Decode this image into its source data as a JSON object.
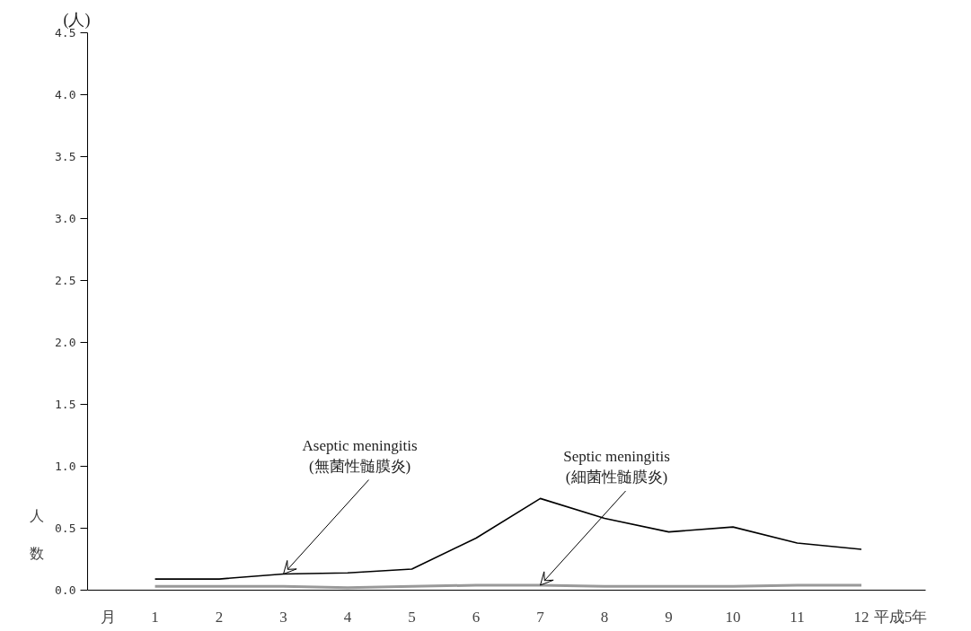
{
  "chart_data": {
    "type": "line",
    "xlabel": "平成5年",
    "ylabel": "人数",
    "x": [
      1,
      2,
      3,
      4,
      5,
      6,
      7,
      8,
      9,
      10,
      11,
      12
    ],
    "xlim": [
      -0.05,
      13
    ],
    "xticks": [
      1,
      2,
      3,
      4,
      5,
      6,
      7,
      8,
      9,
      10,
      11,
      12
    ],
    "ylim": [
      0,
      4.5
    ],
    "yticks": [
      {
        "value": 0,
        "label": "0.0"
      },
      {
        "value": 0.5,
        "label": "0.5"
      },
      {
        "value": 1,
        "label": "1.0"
      },
      {
        "value": 1.5,
        "label": "1.5"
      },
      {
        "value": 2,
        "label": "2.0"
      },
      {
        "value": 2.5,
        "label": "2.5"
      },
      {
        "value": 3,
        "label": "3.0"
      },
      {
        "value": 3.5,
        "label": "3.5"
      },
      {
        "value": 4,
        "label": "4.0"
      },
      {
        "value": 4.5,
        "label": "4.5"
      }
    ],
    "series": [
      {
        "color": "#000000",
        "values": [
          0.09,
          0.09,
          0.13,
          0.14,
          0.17,
          0.42,
          0.74,
          0.58,
          0.47,
          0.51,
          0.38,
          0.33
        ]
      },
      {
        "color": "#999999",
        "values": [
          0.03,
          0.03,
          0.03,
          0.02,
          0.03,
          0.04,
          0.04,
          0.03,
          0.03,
          0.03,
          0.04,
          0.04
        ]
      }
    ],
    "annotations": [
      {
        "text": "Aseptic meningitis\n(無菌性髄膜炎)",
        "x": 3,
        "y": 0.13
      },
      {
        "text": "Septic meningitis\n(細菌性髄膜炎)",
        "x": 7,
        "y": 0.04
      },
      "(人)",
      "月"
    ]
  }
}
